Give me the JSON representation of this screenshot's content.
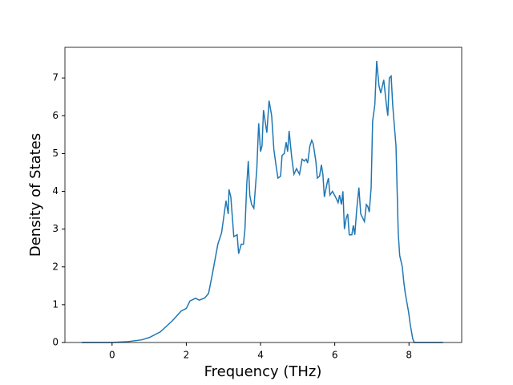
{
  "chart_data": {
    "type": "line",
    "x_label": "Frequency (THz)",
    "y_label": "Density of States",
    "x": [
      -0.82,
      0,
      0.4,
      0.8,
      1.0,
      1.3,
      1.62,
      1.86,
      2.0,
      2.1,
      2.25,
      2.35,
      2.5,
      2.6,
      2.7,
      2.85,
      2.95,
      3.07,
      3.13,
      3.15,
      3.2,
      3.28,
      3.37,
      3.41,
      3.48,
      3.54,
      3.58,
      3.63,
      3.67,
      3.71,
      3.76,
      3.82,
      3.9,
      3.95,
      4.0,
      4.04,
      4.08,
      4.17,
      4.23,
      4.3,
      4.36,
      4.43,
      4.47,
      4.54,
      4.58,
      4.64,
      4.69,
      4.73,
      4.77,
      4.84,
      4.9,
      4.97,
      5.05,
      5.12,
      5.18,
      5.23,
      5.27,
      5.33,
      5.38,
      5.42,
      5.49,
      5.53,
      5.59,
      5.64,
      5.68,
      5.72,
      5.79,
      5.83,
      5.87,
      5.94,
      6.02,
      6.09,
      6.13,
      6.18,
      6.22,
      6.26,
      6.31,
      6.35,
      6.39,
      6.46,
      6.5,
      6.54,
      6.59,
      6.65,
      6.7,
      6.8,
      6.85,
      6.89,
      6.93,
      6.98,
      7.02,
      7.08,
      7.13,
      7.19,
      7.24,
      7.32,
      7.39,
      7.43,
      7.47,
      7.52,
      7.56,
      7.6,
      7.65,
      7.71,
      7.75,
      7.82,
      7.86,
      7.9,
      7.99,
      8.03,
      8.1,
      8.14,
      8.92
    ],
    "series": [
      {
        "color": "#1f77b4",
        "values": [
          0,
          0,
          0.02,
          0.07,
          0.13,
          0.28,
          0.57,
          0.83,
          0.9,
          1.1,
          1.17,
          1.12,
          1.18,
          1.3,
          1.8,
          2.6,
          2.9,
          3.75,
          3.4,
          4.05,
          3.85,
          2.8,
          2.85,
          2.35,
          2.6,
          2.6,
          3.0,
          4.2,
          4.8,
          3.9,
          3.65,
          3.55,
          4.6,
          5.8,
          5.05,
          5.2,
          6.15,
          5.55,
          6.4,
          6.0,
          5.1,
          4.6,
          4.35,
          4.4,
          4.95,
          5.0,
          5.3,
          5.05,
          5.6,
          4.9,
          4.45,
          4.6,
          4.45,
          4.85,
          4.8,
          4.85,
          4.75,
          5.2,
          5.35,
          5.25,
          4.8,
          4.35,
          4.4,
          4.7,
          4.45,
          3.85,
          4.2,
          4.35,
          3.9,
          4.0,
          3.85,
          3.7,
          3.9,
          3.65,
          4.0,
          3.0,
          3.3,
          3.4,
          2.85,
          2.85,
          3.1,
          2.85,
          3.5,
          4.1,
          3.4,
          3.2,
          3.65,
          3.6,
          3.45,
          4.1,
          5.85,
          6.3,
          7.45,
          6.8,
          6.6,
          6.95,
          6.3,
          6.0,
          7.0,
          7.05,
          6.3,
          5.8,
          5.2,
          2.9,
          2.3,
          2.0,
          1.6,
          1.3,
          0.8,
          0.5,
          0.1,
          0,
          0
        ]
      }
    ],
    "xlim": [
      -1.27,
      9.42
    ],
    "ylim": [
      0,
      7.81
    ],
    "xticks": [
      0,
      2,
      4,
      6,
      8
    ],
    "yticks": [
      0,
      1,
      2,
      3,
      4,
      5,
      6,
      7
    ]
  }
}
